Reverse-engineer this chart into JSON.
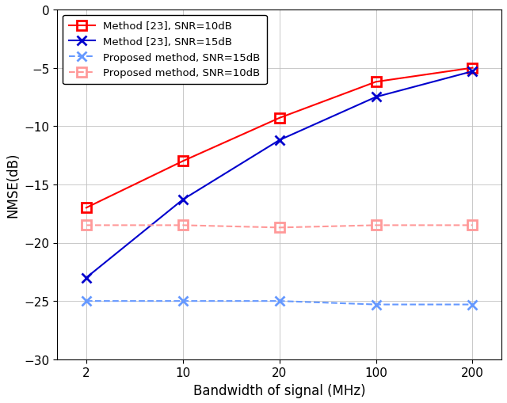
{
  "x": [
    2,
    10,
    20,
    100,
    200
  ],
  "x_positions": [
    0,
    1,
    2,
    3,
    4
  ],
  "method23_snr10": [
    -17.0,
    -13.0,
    -9.3,
    -6.2,
    -5.0
  ],
  "method23_snr15": [
    -23.0,
    -16.3,
    -11.2,
    -7.5,
    -5.3
  ],
  "proposed_snr15": [
    -25.0,
    -25.0,
    -25.0,
    -25.3,
    -25.3
  ],
  "proposed_snr10": [
    -18.5,
    -18.5,
    -18.7,
    -18.5,
    -18.5
  ],
  "xlabel": "Bandwidth of signal (MHz)",
  "ylabel": "NMSE(dB)",
  "ylim": [
    -30,
    0
  ],
  "yticks": [
    0,
    -5,
    -10,
    -15,
    -20,
    -25,
    -30
  ],
  "xlabels": [
    "2",
    "10",
    "20",
    "100",
    "200"
  ],
  "legend": [
    "Method [23], SNR=10dB",
    "Method [23], SNR=15dB",
    "Proposed method, SNR=15dB",
    "Proposed method, SNR=10dB"
  ],
  "color_red": "#FF0000",
  "color_blue": "#0000CD",
  "color_red_light": "#FF9999",
  "color_blue_light": "#6699FF",
  "marker_square": "s",
  "marker_x": "x",
  "linewidth": 1.5,
  "markersize": 8,
  "markeredgewidth": 2.0,
  "grid_color": "#C0C0C0",
  "background": "#FFFFFF"
}
